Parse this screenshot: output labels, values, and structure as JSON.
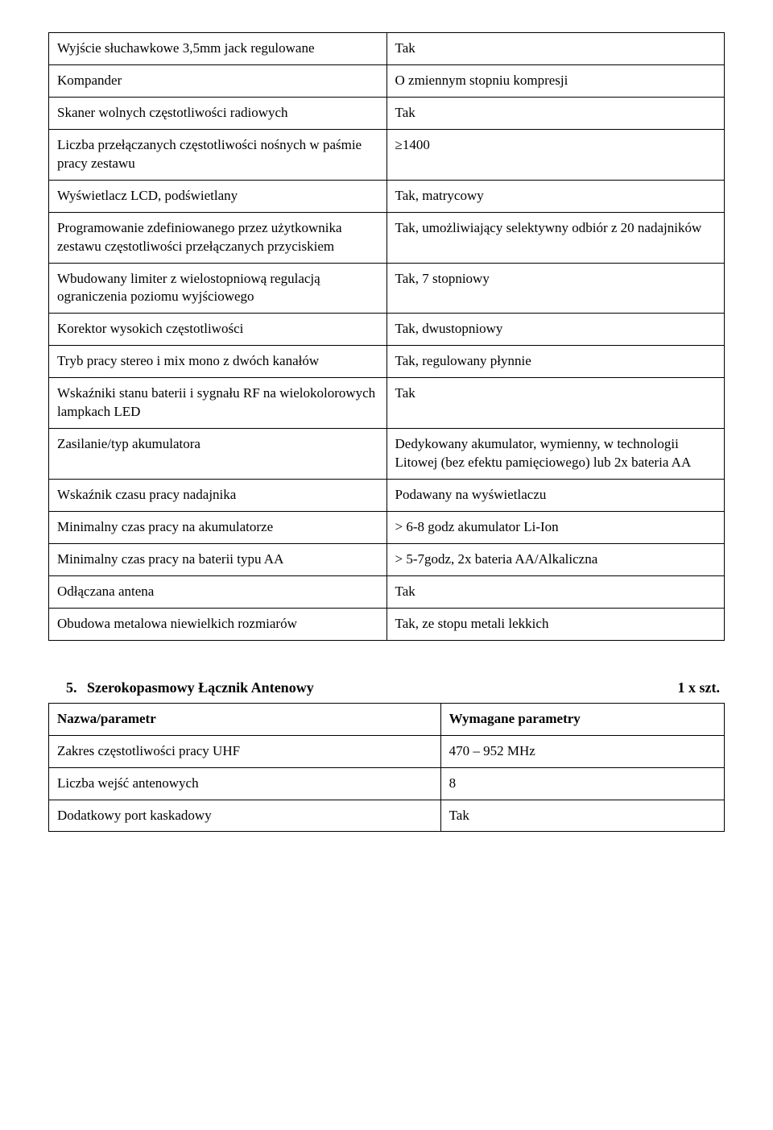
{
  "table1": {
    "rows": [
      {
        "param": "Wyjście słuchawkowe 3,5mm jack regulowane",
        "value": "Tak"
      },
      {
        "param": "Kompander",
        "value": "O zmiennym stopniu kompresji"
      },
      {
        "param": "Skaner wolnych częstotliwości radiowych",
        "value": "Tak"
      },
      {
        "param": "Liczba przełączanych częstotliwości nośnych w paśmie pracy zestawu",
        "value": "≥1400"
      },
      {
        "param": "Wyświetlacz LCD, podświetlany",
        "value": "Tak, matrycowy"
      },
      {
        "param": "Programowanie zdefiniowanego przez użytkownika zestawu częstotliwości przełączanych przyciskiem",
        "value": "Tak, umożliwiający selektywny odbiór z 20 nadajników"
      },
      {
        "param": "Wbudowany limiter z wielostopniową regulacją ograniczenia poziomu wyjściowego",
        "value": "Tak, 7 stopniowy"
      },
      {
        "param": "Korektor wysokich częstotliwości",
        "value": "Tak, dwustopniowy"
      },
      {
        "param": "Tryb pracy stereo i mix mono z dwóch kanałów",
        "value": "Tak, regulowany płynnie"
      },
      {
        "param": "Wskaźniki stanu baterii i sygnału RF na wielokolorowych lampkach LED",
        "value": "Tak"
      },
      {
        "param": "Zasilanie/typ akumulatora",
        "value": "Dedykowany akumulator, wymienny, w technologii Litowej (bez efektu pamięciowego) lub 2x bateria AA"
      },
      {
        "param": "Wskaźnik czasu pracy nadajnika",
        "value": "Podawany na wyświetlaczu"
      },
      {
        "param": "Minimalny czas pracy na akumulatorze",
        "value": "> 6-8 godz akumulator Li-Ion"
      },
      {
        "param": "Minimalny czas pracy na baterii typu AA",
        "value": "> 5-7godz, 2x bateria AA/Alkaliczna"
      },
      {
        "param": "Odłączana antena",
        "value": "Tak"
      },
      {
        "param": "Obudowa metalowa niewielkich rozmiarów",
        "value": "Tak, ze stopu metali lekkich"
      }
    ]
  },
  "section5": {
    "number": "5.",
    "title": "Szerokopasmowy Łącznik Antenowy",
    "qty": "1 x szt."
  },
  "table2": {
    "header": {
      "param": "Nazwa/parametr",
      "value": "Wymagane parametry"
    },
    "rows": [
      {
        "param": "Zakres częstotliwości pracy UHF",
        "value": "470 – 952 MHz"
      },
      {
        "param": "Liczba wejść antenowych",
        "value": "8"
      },
      {
        "param": "Dodatkowy port kaskadowy",
        "value": "Tak"
      }
    ]
  }
}
